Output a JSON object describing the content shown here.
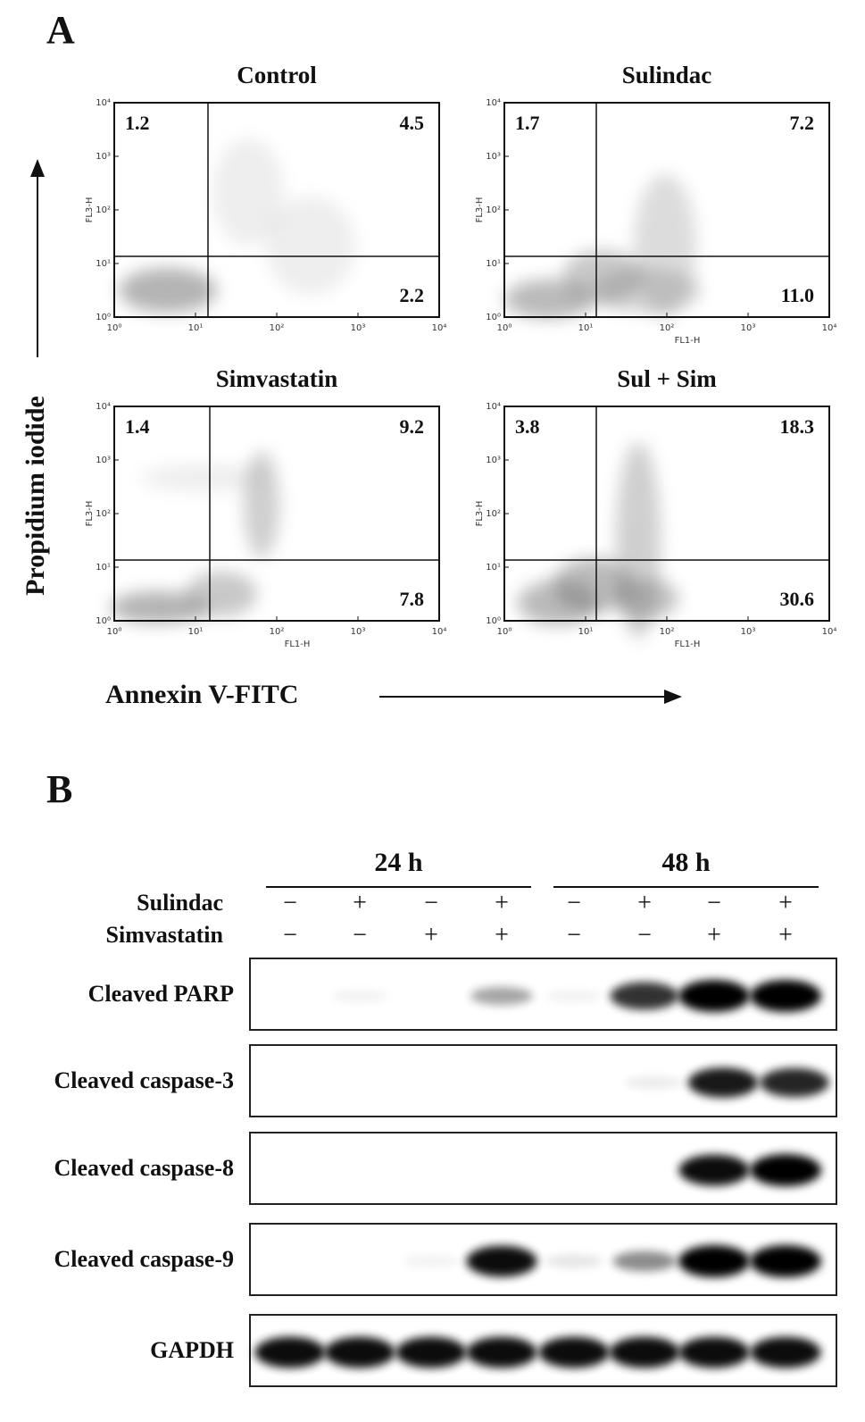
{
  "panel_a": {
    "label": "A",
    "y_axis_label": "Propidium iodide",
    "x_axis_label": "Annexin V-FITC",
    "tick_labels": [
      "10⁰",
      "10¹",
      "10²",
      "10³",
      "10⁴"
    ],
    "plots": [
      {
        "title": "Control",
        "y_axis": "FL3-H",
        "upper_left": "1.2",
        "upper_right": "4.5",
        "lower_right": "2.2"
      },
      {
        "title": "Sulindac",
        "y_axis": "FL3-H",
        "x_axis": "FL1-H",
        "upper_left": "1.7",
        "upper_right": "7.2",
        "lower_right": "11.0"
      },
      {
        "title": "Simvastatin",
        "y_axis": "FL3-H",
        "x_axis": "FL1-H",
        "upper_left": "1.4",
        "upper_right": "9.2",
        "lower_right": "7.8"
      },
      {
        "title": "Sul + Sim",
        "y_axis": "FL3-H",
        "x_axis": "FL1-H",
        "upper_left": "3.8",
        "upper_right": "18.3",
        "lower_right": "30.6"
      }
    ]
  },
  "panel_b": {
    "label": "B",
    "groups": [
      "24 h",
      "48 h"
    ],
    "treatments": [
      {
        "name": "Sulindac",
        "signs": [
          "−",
          "+",
          "−",
          "+",
          "−",
          "+",
          "−",
          "+"
        ]
      },
      {
        "name": "Simvastatin",
        "signs": [
          "−",
          "−",
          "+",
          "+",
          "−",
          "−",
          "+",
          "+"
        ]
      }
    ],
    "blots": [
      "Cleaved PARP",
      "Cleaved caspase-3",
      "Cleaved caspase-8",
      "Cleaved caspase-9",
      "GAPDH"
    ]
  }
}
